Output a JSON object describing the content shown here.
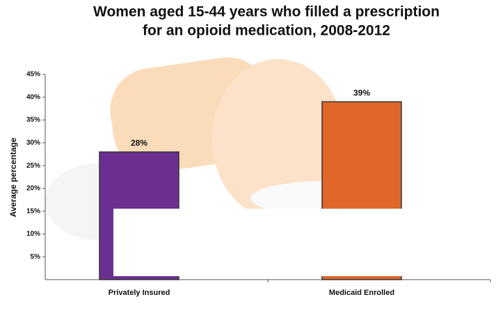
{
  "chart_data": {
    "type": "bar",
    "title": [
      "Women aged 15-44 years who filled a prescription",
      "for an opioid medication, 2008-2012"
    ],
    "y_label": "Average percentage",
    "categories": [
      "Privately Insured",
      "Medicaid Enrolled"
    ],
    "values": [
      28,
      39
    ],
    "value_labels": [
      "28%",
      "39%"
    ],
    "colors": [
      "#6b2f91",
      "#e0662a"
    ],
    "ylim": [
      0,
      45
    ],
    "yticks": [
      {
        "value": 5,
        "label": "5%"
      },
      {
        "value": 10,
        "label": "10%"
      },
      {
        "value": 15,
        "label": "15%"
      },
      {
        "value": 20,
        "label": "20%"
      },
      {
        "value": 25,
        "label": "25%"
      },
      {
        "value": 30,
        "label": "30%"
      },
      {
        "value": 35,
        "label": "35%"
      },
      {
        "value": 40,
        "label": "40%"
      },
      {
        "value": 45,
        "label": "45%"
      }
    ]
  }
}
